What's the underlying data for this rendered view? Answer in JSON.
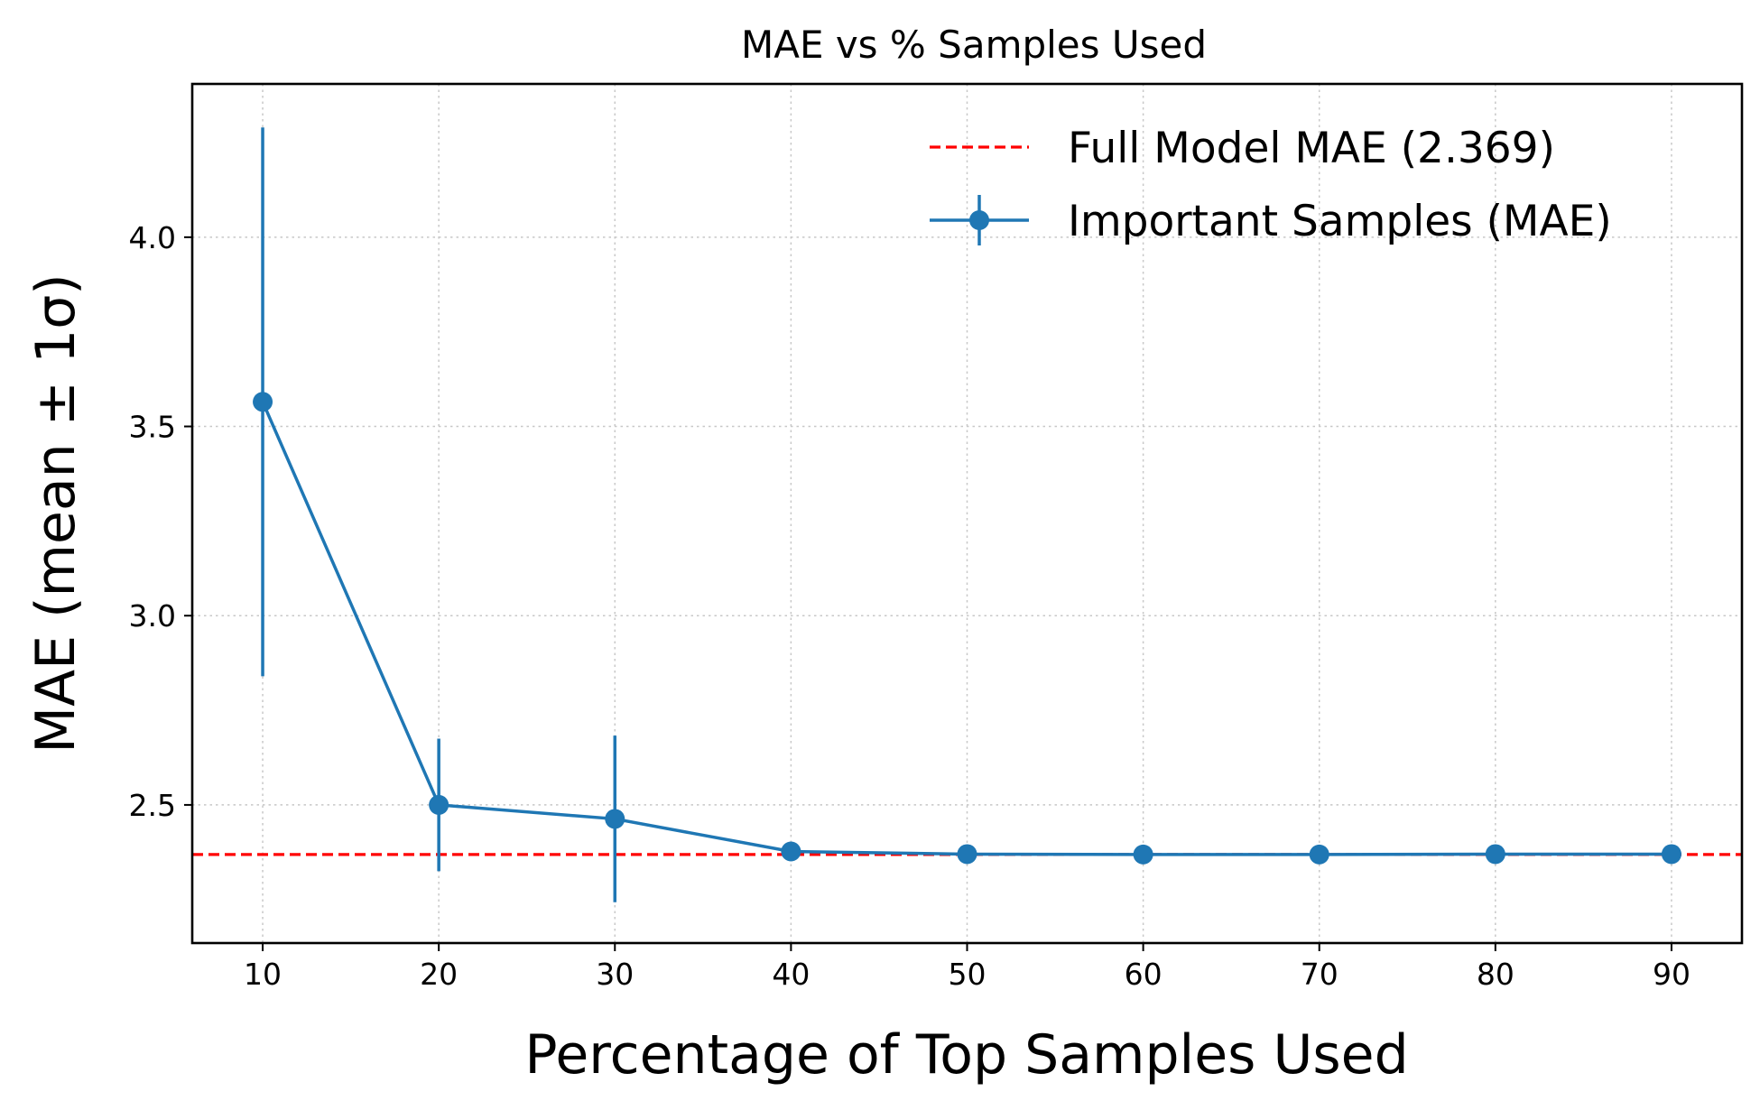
{
  "chart_data": {
    "type": "line",
    "title": "MAE vs % Samples Used",
    "xlabel": "Percentage of Top Samples Used",
    "ylabel": "MAE (mean ± 1σ)",
    "x": [
      10,
      20,
      30,
      40,
      50,
      60,
      70,
      80,
      90
    ],
    "x_ticks": [
      "10",
      "20",
      "30",
      "40",
      "50",
      "60",
      "70",
      "80",
      "90"
    ],
    "y_ticks": [
      "2.5",
      "3.0",
      "3.5",
      "4.0"
    ],
    "xlim": [
      6,
      94
    ],
    "ylim": [
      2.135,
      4.405
    ],
    "grid": true,
    "legend_position": "top-right",
    "series": [
      {
        "name": "Important Samples (MAE)",
        "color": "#1f77b4",
        "marker": "circle",
        "values": [
          3.565,
          2.5,
          2.463,
          2.377,
          2.37,
          2.369,
          2.369,
          2.37,
          2.37
        ],
        "error": [
          0.725,
          0.175,
          0.22,
          0.008,
          0.005,
          0.003,
          0.003,
          0.004,
          0.004
        ]
      }
    ],
    "reference_lines": [
      {
        "name": "Full Model MAE (2.369)",
        "y": 2.369,
        "color": "#ff0000",
        "style": "dashed"
      }
    ]
  }
}
